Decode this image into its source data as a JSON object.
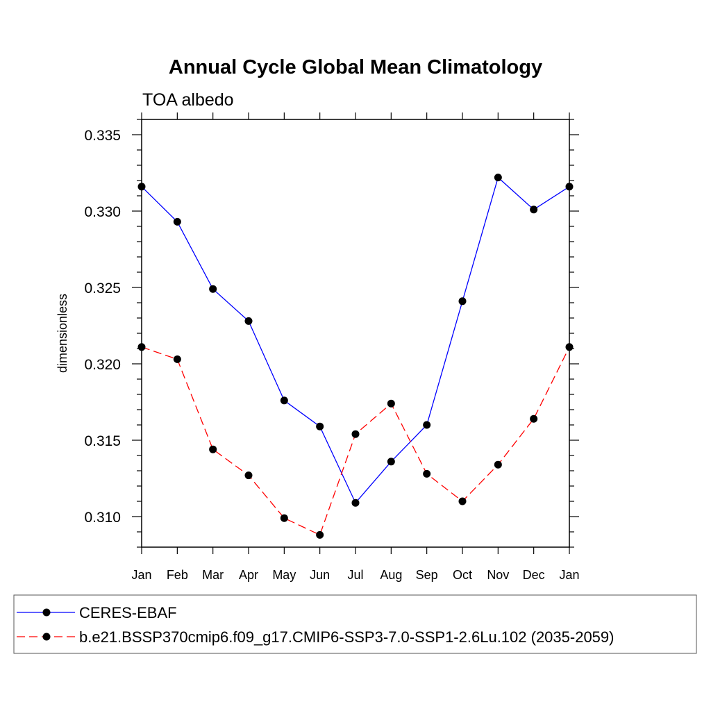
{
  "chart_data": {
    "type": "line",
    "title": "Annual Cycle Global Mean Climatology",
    "subtitle": "TOA albedo",
    "xlabel": "",
    "ylabel": "dimensionless",
    "categories": [
      "Jan",
      "Feb",
      "Mar",
      "Apr",
      "May",
      "Jun",
      "Jul",
      "Aug",
      "Sep",
      "Oct",
      "Nov",
      "Dec",
      "Jan"
    ],
    "ylim": [
      0.308,
      0.336
    ],
    "yticks": [
      "0.310",
      "0.315",
      "0.320",
      "0.325",
      "0.330",
      "0.335"
    ],
    "grid": false,
    "legend_position": "bottom",
    "series": [
      {
        "name": "CERES-EBAF",
        "color": "#0000ff",
        "dash": "solid",
        "marker": "filled-circle",
        "values": [
          0.3316,
          0.3293,
          0.3249,
          0.3228,
          0.3176,
          0.3159,
          0.3109,
          0.3136,
          0.316,
          0.3241,
          0.3322,
          0.3301,
          0.3316
        ]
      },
      {
        "name": "b.e21.BSSP370cmip6.f09_g17.CMIP6-SSP3-7.0-SSP1-2.6Lu.102 (2035-2059)",
        "color": "#ff0000",
        "dash": "dashed",
        "marker": "filled-circle",
        "values": [
          0.3211,
          0.3203,
          0.3144,
          0.3127,
          0.3099,
          0.3088,
          0.3154,
          0.3174,
          0.3128,
          0.311,
          0.3134,
          0.3164,
          0.3211
        ]
      }
    ]
  }
}
